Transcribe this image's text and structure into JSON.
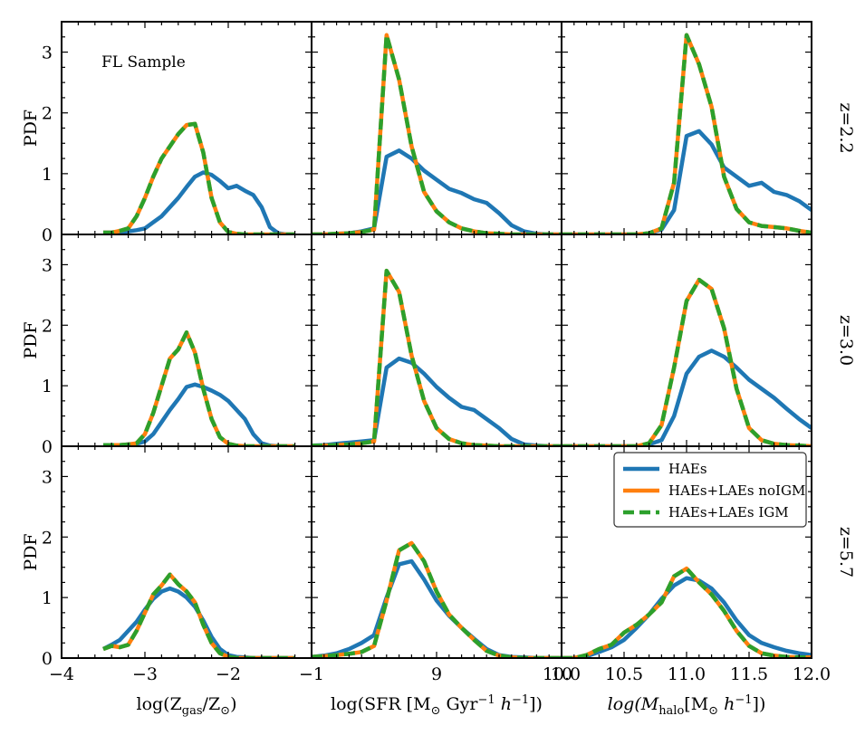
{
  "chart_data": {
    "type": "line",
    "annotation": "FL Sample",
    "ylabel": "PDF",
    "ylim": [
      0,
      3.5
    ],
    "yticks": [
      "0",
      "1",
      "2",
      "3"
    ],
    "rows": [
      {
        "label": "z=2.2"
      },
      {
        "label": "z=3.0"
      },
      {
        "label": "z=5.7"
      }
    ],
    "columns": [
      {
        "xlabel_parts": [
          "log(Z",
          "gas",
          "/Z",
          "⊙",
          ")"
        ],
        "xlim": [
          -4,
          -1
        ],
        "xticks": [
          {
            "v": -4,
            "t": "−4"
          },
          {
            "v": -3,
            "t": "−3"
          },
          {
            "v": -2,
            "t": "−2"
          },
          {
            "v": -1,
            "t": "−1"
          }
        ]
      },
      {
        "xlabel_parts": [
          "log(SFR [M",
          "⊙",
          " Gyr",
          "−1",
          " h",
          "−1",
          "])"
        ],
        "xlim": [
          8,
          10
        ],
        "xticks": [
          {
            "v": 9,
            "t": "9"
          },
          {
            "v": 10,
            "t": "10"
          }
        ]
      },
      {
        "xlabel_parts": [
          "log(M",
          "halo",
          "[M",
          "⊙",
          " h",
          "−1",
          "])"
        ],
        "xlim": [
          10,
          12
        ],
        "xticks": [
          {
            "v": 10,
            "t": "10.0"
          },
          {
            "v": 10.5,
            "t": "10.5"
          },
          {
            "v": 11,
            "t": "11.0"
          },
          {
            "v": 11.5,
            "t": "11.5"
          },
          {
            "v": 12,
            "t": "12.0"
          }
        ]
      }
    ],
    "legend": [
      {
        "name": "HAEs",
        "color": "#1f77b4"
      },
      {
        "name": "HAEs+LAEs noIGM",
        "color": "#ff7f0e"
      },
      {
        "name": "HAEs+LAEs IGM",
        "color": "#2ca02c"
      }
    ],
    "panels": [
      [
        {
          "x": [
            -3.5,
            -3.4,
            -3.3,
            -3.2,
            -3.1,
            -3.0,
            -2.9,
            -2.8,
            -2.7,
            -2.6,
            -2.5,
            -2.4,
            -2.3,
            -2.2,
            -2.1,
            -2.0,
            -1.9,
            -1.8,
            -1.7,
            -1.6,
            -1.5,
            -1.4,
            -1.3,
            -1.2
          ],
          "haes": [
            0.03,
            0.03,
            0.04,
            0.05,
            0.07,
            0.1,
            0.2,
            0.3,
            0.45,
            0.6,
            0.78,
            0.95,
            1.02,
            0.98,
            0.88,
            0.76,
            0.8,
            0.72,
            0.65,
            0.45,
            0.12,
            0.02,
            0.0,
            0.0
          ],
          "lae": [
            0.03,
            0.03,
            0.06,
            0.1,
            0.3,
            0.6,
            0.95,
            1.25,
            1.45,
            1.65,
            1.8,
            1.82,
            1.35,
            0.6,
            0.2,
            0.04,
            0.01,
            0.0,
            0.0,
            0.0,
            0.0,
            0.0,
            0.0,
            0.0
          ]
        },
        {
          "x": [
            8.0,
            8.1,
            8.2,
            8.3,
            8.4,
            8.5,
            8.6,
            8.7,
            8.8,
            8.9,
            9.0,
            9.1,
            9.2,
            9.3,
            9.4,
            9.5,
            9.6,
            9.7,
            9.8,
            9.9,
            10.0
          ],
          "haes": [
            0.0,
            0.0,
            0.01,
            0.02,
            0.05,
            0.1,
            1.28,
            1.38,
            1.25,
            1.05,
            0.9,
            0.75,
            0.68,
            0.58,
            0.52,
            0.35,
            0.15,
            0.05,
            0.01,
            0.0,
            0.0
          ],
          "lae": [
            0.0,
            0.0,
            0.01,
            0.02,
            0.04,
            0.08,
            3.28,
            2.55,
            1.45,
            0.7,
            0.38,
            0.2,
            0.1,
            0.05,
            0.02,
            0.01,
            0.0,
            0.0,
            0.0,
            0.0,
            0.0
          ]
        },
        {
          "x": [
            10.0,
            10.1,
            10.2,
            10.3,
            10.4,
            10.5,
            10.6,
            10.7,
            10.8,
            10.9,
            11.0,
            11.1,
            11.2,
            11.3,
            11.4,
            11.5,
            11.6,
            11.7,
            11.8,
            11.9,
            12.0
          ],
          "haes": [
            0.0,
            0.0,
            0.0,
            0.0,
            0.0,
            0.0,
            0.0,
            0.02,
            0.08,
            0.4,
            1.62,
            1.7,
            1.48,
            1.1,
            0.95,
            0.8,
            0.85,
            0.7,
            0.65,
            0.55,
            0.4
          ],
          "lae": [
            0.0,
            0.0,
            0.0,
            0.0,
            0.0,
            0.0,
            0.0,
            0.02,
            0.1,
            0.85,
            3.28,
            2.8,
            2.1,
            0.95,
            0.42,
            0.2,
            0.14,
            0.12,
            0.1,
            0.06,
            0.03
          ]
        }
      ],
      [
        {
          "x": [
            -3.5,
            -3.4,
            -3.3,
            -3.2,
            -3.1,
            -3.0,
            -2.9,
            -2.8,
            -2.7,
            -2.6,
            -2.5,
            -2.4,
            -2.3,
            -2.2,
            -2.1,
            -2.0,
            -1.9,
            -1.8,
            -1.7,
            -1.6,
            -1.5,
            -1.4,
            -1.3,
            -1.2
          ],
          "haes": [
            0.02,
            0.02,
            0.02,
            0.03,
            0.04,
            0.08,
            0.2,
            0.4,
            0.6,
            0.78,
            0.98,
            1.02,
            0.98,
            0.92,
            0.85,
            0.75,
            0.6,
            0.45,
            0.2,
            0.05,
            0.01,
            0.0,
            0.0,
            0.0
          ],
          "lae": [
            0.02,
            0.02,
            0.02,
            0.03,
            0.05,
            0.2,
            0.55,
            1.0,
            1.45,
            1.6,
            1.88,
            1.55,
            0.95,
            0.45,
            0.15,
            0.04,
            0.01,
            0.0,
            0.0,
            0.0,
            0.0,
            0.0,
            0.0,
            0.0
          ]
        },
        {
          "x": [
            8.0,
            8.1,
            8.2,
            8.3,
            8.4,
            8.5,
            8.6,
            8.7,
            8.8,
            8.9,
            9.0,
            9.1,
            9.2,
            9.3,
            9.4,
            9.5,
            9.6,
            9.7,
            9.8,
            9.9,
            10.0
          ],
          "haes": [
            0.01,
            0.02,
            0.04,
            0.06,
            0.08,
            0.1,
            1.3,
            1.45,
            1.38,
            1.2,
            0.98,
            0.8,
            0.65,
            0.6,
            0.45,
            0.3,
            0.12,
            0.03,
            0.01,
            0.0,
            0.0
          ],
          "lae": [
            0.01,
            0.01,
            0.02,
            0.03,
            0.05,
            0.08,
            2.9,
            2.55,
            1.5,
            0.75,
            0.3,
            0.12,
            0.05,
            0.02,
            0.01,
            0.0,
            0.0,
            0.0,
            0.0,
            0.0,
            0.0
          ]
        },
        {
          "x": [
            10.0,
            10.1,
            10.2,
            10.3,
            10.4,
            10.5,
            10.6,
            10.7,
            10.8,
            10.9,
            11.0,
            11.1,
            11.2,
            11.3,
            11.4,
            11.5,
            11.6,
            11.7,
            11.8,
            11.9,
            12.0
          ],
          "haes": [
            0.0,
            0.0,
            0.0,
            0.0,
            0.0,
            0.0,
            0.0,
            0.03,
            0.1,
            0.5,
            1.2,
            1.48,
            1.58,
            1.48,
            1.3,
            1.1,
            0.95,
            0.8,
            0.62,
            0.45,
            0.3
          ],
          "lae": [
            0.0,
            0.0,
            0.0,
            0.0,
            0.0,
            0.0,
            0.0,
            0.05,
            0.35,
            1.3,
            2.4,
            2.75,
            2.6,
            1.95,
            0.95,
            0.3,
            0.1,
            0.04,
            0.02,
            0.01,
            0.0
          ]
        }
      ],
      [
        {
          "x": [
            -3.5,
            -3.4,
            -3.3,
            -3.2,
            -3.1,
            -3.0,
            -2.9,
            -2.8,
            -2.7,
            -2.6,
            -2.5,
            -2.4,
            -2.3,
            -2.2,
            -2.1,
            -2.0,
            -1.9,
            -1.8,
            -1.7,
            -1.6,
            -1.5,
            -1.4,
            -1.3,
            -1.2
          ],
          "haes": [
            0.15,
            0.22,
            0.3,
            0.45,
            0.6,
            0.8,
            0.98,
            1.1,
            1.15,
            1.1,
            1.0,
            0.85,
            0.62,
            0.35,
            0.15,
            0.05,
            0.02,
            0.01,
            0.0,
            0.0,
            0.0,
            0.0,
            0.0,
            0.0
          ],
          "lae": [
            0.15,
            0.2,
            0.18,
            0.22,
            0.45,
            0.75,
            1.05,
            1.2,
            1.38,
            1.22,
            1.1,
            0.92,
            0.55,
            0.25,
            0.08,
            0.02,
            0.0,
            0.0,
            0.0,
            0.0,
            0.0,
            0.0,
            0.0,
            0.0
          ]
        },
        {
          "x": [
            8.0,
            8.1,
            8.2,
            8.3,
            8.4,
            8.5,
            8.6,
            8.7,
            8.8,
            8.9,
            9.0,
            9.1,
            9.2,
            9.3,
            9.4,
            9.5,
            9.6,
            9.7,
            9.8,
            9.9,
            10.0
          ],
          "haes": [
            0.02,
            0.04,
            0.08,
            0.15,
            0.25,
            0.38,
            1.0,
            1.55,
            1.6,
            1.3,
            0.95,
            0.7,
            0.5,
            0.32,
            0.15,
            0.05,
            0.02,
            0.01,
            0.0,
            0.0,
            0.0
          ],
          "lae": [
            0.02,
            0.03,
            0.05,
            0.07,
            0.1,
            0.2,
            0.95,
            1.78,
            1.9,
            1.6,
            1.1,
            0.72,
            0.5,
            0.3,
            0.12,
            0.04,
            0.01,
            0.0,
            0.0,
            0.0,
            0.0
          ]
        },
        {
          "x": [
            10.0,
            10.1,
            10.2,
            10.3,
            10.4,
            10.5,
            10.6,
            10.7,
            10.8,
            10.9,
            11.0,
            11.1,
            11.2,
            11.3,
            11.4,
            11.5,
            11.6,
            11.7,
            11.8,
            11.9,
            12.0
          ],
          "haes": [
            0.0,
            0.0,
            0.03,
            0.1,
            0.18,
            0.3,
            0.5,
            0.72,
            0.98,
            1.2,
            1.32,
            1.28,
            1.15,
            0.92,
            0.62,
            0.38,
            0.25,
            0.18,
            0.12,
            0.08,
            0.05
          ],
          "lae": [
            0.0,
            0.0,
            0.05,
            0.15,
            0.22,
            0.42,
            0.55,
            0.72,
            0.92,
            1.35,
            1.48,
            1.25,
            1.05,
            0.78,
            0.45,
            0.2,
            0.08,
            0.04,
            0.02,
            0.01,
            0.01
          ]
        }
      ]
    ]
  }
}
